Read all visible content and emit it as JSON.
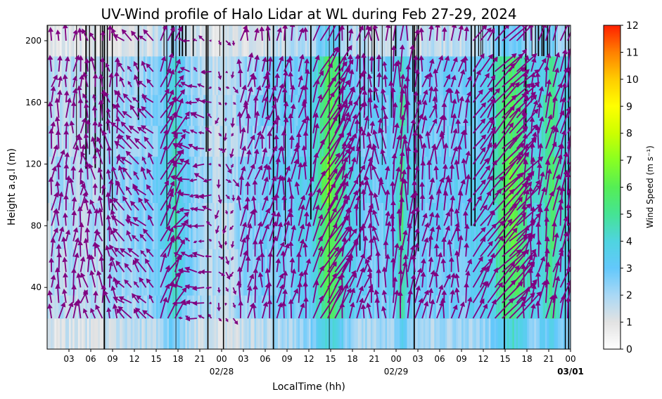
{
  "chart_data": {
    "type": "heatmap",
    "title": "UV-Wind profile of Halo Lidar at WL during Feb 27-29, 2024",
    "xlabel": "LocalTime (hh)",
    "ylabel": "Height a.g.l (m)",
    "x_range_hours": [
      0,
      72
    ],
    "ylim": [
      0,
      210
    ],
    "x_ticks": [
      {
        "h": 3,
        "label": "03"
      },
      {
        "h": 6,
        "label": "06"
      },
      {
        "h": 9,
        "label": "09"
      },
      {
        "h": 12,
        "label": "12"
      },
      {
        "h": 15,
        "label": "15"
      },
      {
        "h": 18,
        "label": "18"
      },
      {
        "h": 21,
        "label": "21"
      },
      {
        "h": 24,
        "label": "00"
      },
      {
        "h": 27,
        "label": "03"
      },
      {
        "h": 30,
        "label": "06"
      },
      {
        "h": 33,
        "label": "09"
      },
      {
        "h": 36,
        "label": "12"
      },
      {
        "h": 39,
        "label": "15"
      },
      {
        "h": 42,
        "label": "18"
      },
      {
        "h": 45,
        "label": "21"
      },
      {
        "h": 48,
        "label": "00"
      },
      {
        "h": 51,
        "label": "03"
      },
      {
        "h": 54,
        "label": "06"
      },
      {
        "h": 57,
        "label": "09"
      },
      {
        "h": 60,
        "label": "12"
      },
      {
        "h": 63,
        "label": "15"
      },
      {
        "h": 66,
        "label": "18"
      },
      {
        "h": 69,
        "label": "21"
      },
      {
        "h": 72,
        "label": "00"
      }
    ],
    "date_labels": [
      {
        "h": 24,
        "label": "02/28",
        "bold": false
      },
      {
        "h": 48,
        "label": "02/29",
        "bold": false
      },
      {
        "h": 72,
        "label": "03/01",
        "bold": true
      }
    ],
    "y_ticks": [
      40,
      80,
      120,
      160,
      200
    ],
    "colorbar": {
      "label": "Wind Speed (m s⁻¹)",
      "min": 0,
      "max": 12,
      "ticks": [
        0,
        1,
        2,
        3,
        4,
        5,
        6,
        7,
        8,
        9,
        10,
        11,
        12
      ],
      "colors": [
        "#ffffff",
        "#e2e2e2",
        "#a9d8f5",
        "#63c8fb",
        "#4fd4e0",
        "#45e394",
        "#55ee55",
        "#88ff22",
        "#ccff00",
        "#ffff00",
        "#ffcc00",
        "#ff8000",
        "#ff2000"
      ]
    },
    "levels_m": [
      20,
      30,
      40,
      50,
      60,
      70,
      80,
      90,
      100,
      110,
      120,
      130,
      140,
      150,
      160,
      170,
      180,
      200
    ],
    "speed_profile": [
      {
        "h": 0,
        "v": 1.6
      },
      {
        "h": 3,
        "v": 1.8
      },
      {
        "h": 6,
        "v": 1.7
      },
      {
        "h": 9,
        "v": 2.0
      },
      {
        "h": 12,
        "v": 2.2
      },
      {
        "h": 15,
        "v": 2.6
      },
      {
        "h": 16.5,
        "v": 3.4
      },
      {
        "h": 17.5,
        "v": 4.3
      },
      {
        "h": 18.5,
        "v": 3.2
      },
      {
        "h": 20,
        "v": 2.3
      },
      {
        "h": 23,
        "v": 1.8
      },
      {
        "h": 24,
        "v": 1.6
      },
      {
        "h": 27,
        "v": 2.2
      },
      {
        "h": 30,
        "v": 2.6
      },
      {
        "h": 33,
        "v": 2.9
      },
      {
        "h": 36,
        "v": 3.3
      },
      {
        "h": 37.5,
        "v": 4.5
      },
      {
        "h": 38.5,
        "v": 6.0
      },
      {
        "h": 39.5,
        "v": 5.6
      },
      {
        "h": 41,
        "v": 3.8
      },
      {
        "h": 43,
        "v": 2.9
      },
      {
        "h": 46,
        "v": 2.7
      },
      {
        "h": 48,
        "v": 3.3
      },
      {
        "h": 48.8,
        "v": 5.0
      },
      {
        "h": 49.6,
        "v": 3.4
      },
      {
        "h": 51,
        "v": 2.6
      },
      {
        "h": 54,
        "v": 2.9
      },
      {
        "h": 57,
        "v": 2.9
      },
      {
        "h": 59,
        "v": 3.1
      },
      {
        "h": 61,
        "v": 3.6
      },
      {
        "h": 62.5,
        "v": 5.1
      },
      {
        "h": 64,
        "v": 5.8
      },
      {
        "h": 65.5,
        "v": 4.8
      },
      {
        "h": 67,
        "v": 3.4
      },
      {
        "h": 68.5,
        "v": 4.3
      },
      {
        "h": 69.5,
        "v": 5.1
      },
      {
        "h": 70.5,
        "v": 4.0
      },
      {
        "h": 72,
        "v": 3.1
      }
    ],
    "vectors": {
      "color": "#800080",
      "scale_m_per_mps": 4.2,
      "groups": [
        {
          "h0": 0,
          "h1": 5,
          "dx": 0.3,
          "dy": 2.5
        },
        {
          "h0": 5,
          "h1": 10,
          "dx": -0.4,
          "dy": 2.2
        },
        {
          "h0": 10,
          "h1": 15,
          "dx": -1.4,
          "dy": 1.6
        },
        {
          "h0": 15,
          "h1": 18,
          "dx": 1.5,
          "dy": 2.8
        },
        {
          "h0": 18,
          "h1": 23,
          "dx": -1.2,
          "dy": 0.3
        },
        {
          "h0": 23,
          "h1": 26,
          "dx": 0.2,
          "dy": -0.9
        },
        {
          "h0": 26,
          "h1": 36,
          "dx": 0.4,
          "dy": 2.8
        },
        {
          "h0": 36,
          "h1": 37.5,
          "dx": 1.3,
          "dy": 3.6
        },
        {
          "h0": 37.5,
          "h1": 40,
          "dx": 2.8,
          "dy": 4.6
        },
        {
          "h0": 40,
          "h1": 44,
          "dx": 0.6,
          "dy": 2.9
        },
        {
          "h0": 44,
          "h1": 47,
          "dx": -0.2,
          "dy": 2.6
        },
        {
          "h0": 47,
          "h1": 50,
          "dx": 0.3,
          "dy": 4.6
        },
        {
          "h0": 50,
          "h1": 58,
          "dx": 0.4,
          "dy": 2.7
        },
        {
          "h0": 58,
          "h1": 61,
          "dx": 1.8,
          "dy": 2.8
        },
        {
          "h0": 61,
          "h1": 65,
          "dx": 3.4,
          "dy": 3.8
        },
        {
          "h0": 65,
          "h1": 68,
          "dx": 0.6,
          "dy": 3.0
        },
        {
          "h0": 68,
          "h1": 72,
          "dx": 0.9,
          "dy": 3.6
        }
      ]
    }
  }
}
